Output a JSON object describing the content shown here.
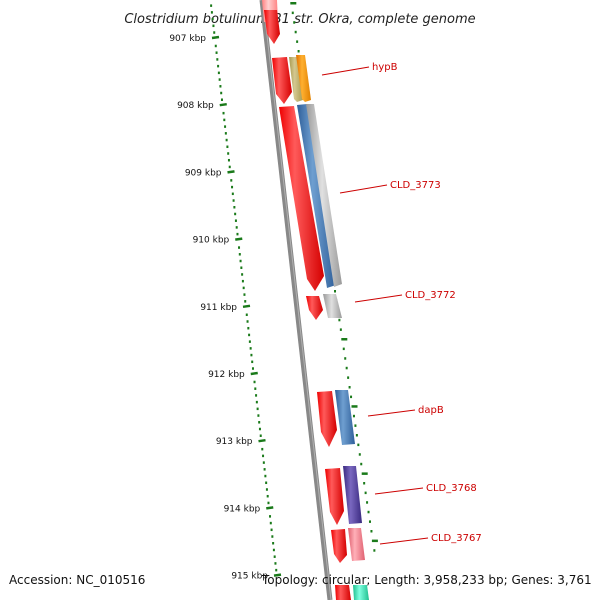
{
  "title": "Clostridium botulinum B1 str. Okra, complete genome",
  "accession": "Accession: NC_010516",
  "summary": "Topology: circular; Length: 3,958,233 bp; Genes: 3,761",
  "ruler": {
    "ticks": [
      "907 kbp",
      "908 kbp",
      "909 kbp",
      "910 kbp",
      "911 kbp",
      "912 kbp",
      "913 kbp",
      "914 kbp",
      "915 kbp"
    ]
  },
  "genes": [
    {
      "label": "hypB"
    },
    {
      "label": "CLD_3773"
    },
    {
      "label": "CLD_3772"
    },
    {
      "label": "dapB"
    },
    {
      "label": "CLD_3768"
    },
    {
      "label": "CLD_3767"
    }
  ],
  "colors": {
    "label": "#cc0000",
    "ruler": "#1a7a1a",
    "backbone": "#808080",
    "cds": "#ff0000"
  }
}
